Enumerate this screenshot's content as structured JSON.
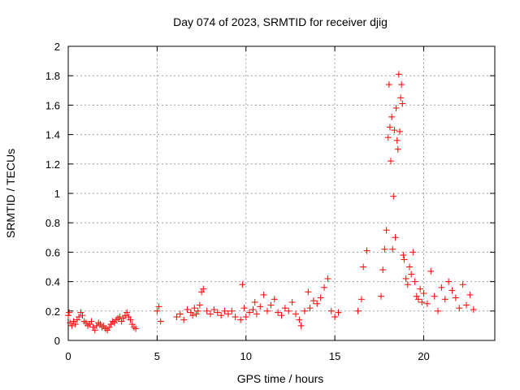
{
  "chart_data": {
    "type": "scatter",
    "title": "Day 074 of 2023, SRMTID for receiver djig",
    "xlabel": "GPS time / hours",
    "ylabel": "SRMTID / TECUs",
    "xlim": [
      0,
      24
    ],
    "ylim": [
      0,
      2
    ],
    "xticks": [
      0,
      5,
      10,
      15,
      20
    ],
    "xtick_labels": [
      "0",
      "5",
      "10",
      "15",
      "20"
    ],
    "yticks": [
      0,
      0.2,
      0.4,
      0.6,
      0.8,
      1,
      1.2,
      1.4,
      1.6,
      1.8,
      2
    ],
    "ytick_labels": [
      "0",
      "0.2",
      "0.4",
      "0.6",
      "0.8",
      "1",
      "1.2",
      "1.4",
      "1.6",
      "1.8",
      "2"
    ],
    "grid": true,
    "marker": "+",
    "color": "#ff0000",
    "series": [
      {
        "name": "SRMTID",
        "x": [
          0.0,
          0.05,
          0.1,
          0.2,
          0.3,
          0.4,
          0.5,
          0.6,
          0.7,
          0.8,
          0.9,
          1.0,
          1.1,
          1.2,
          1.3,
          1.4,
          1.5,
          1.6,
          1.7,
          1.8,
          1.9,
          2.0,
          2.1,
          2.2,
          2.3,
          2.4,
          2.5,
          2.6,
          2.7,
          2.8,
          2.9,
          3.0,
          3.1,
          3.2,
          3.3,
          3.4,
          3.5,
          3.6,
          3.7,
          3.8,
          5.0,
          5.1,
          5.2,
          6.1,
          6.3,
          6.5,
          6.7,
          6.9,
          7.0,
          7.1,
          7.2,
          7.3,
          7.4,
          7.5,
          7.6,
          7.8,
          8.0,
          8.2,
          8.4,
          8.6,
          8.8,
          9.0,
          9.2,
          9.4,
          9.7,
          9.8,
          9.9,
          10.0,
          10.2,
          10.4,
          10.5,
          10.6,
          10.8,
          11.0,
          11.2,
          11.4,
          11.6,
          11.8,
          12.0,
          12.2,
          12.4,
          12.6,
          12.8,
          13.0,
          13.1,
          13.3,
          13.5,
          13.6,
          13.8,
          14.0,
          14.2,
          14.4,
          14.6,
          14.8,
          15.0,
          15.2,
          16.3,
          16.5,
          16.6,
          16.8,
          17.6,
          17.7,
          17.8,
          17.9,
          18.0,
          18.05,
          18.1,
          18.15,
          18.2,
          18.25,
          18.3,
          18.35,
          18.4,
          18.45,
          18.5,
          18.55,
          18.6,
          18.65,
          18.7,
          18.75,
          18.8,
          18.85,
          18.9,
          19.0,
          19.1,
          19.2,
          19.3,
          19.4,
          19.5,
          19.6,
          19.7,
          19.8,
          19.9,
          20.0,
          20.2,
          20.4,
          20.6,
          20.8,
          21.0,
          21.2,
          21.4,
          21.6,
          21.8,
          22.0,
          22.2,
          22.4,
          22.6,
          22.8
        ],
        "y": [
          0.17,
          0.19,
          0.12,
          0.1,
          0.13,
          0.11,
          0.14,
          0.16,
          0.19,
          0.17,
          0.13,
          0.12,
          0.1,
          0.11,
          0.13,
          0.09,
          0.07,
          0.1,
          0.12,
          0.11,
          0.09,
          0.1,
          0.08,
          0.07,
          0.09,
          0.11,
          0.13,
          0.12,
          0.14,
          0.15,
          0.16,
          0.13,
          0.15,
          0.17,
          0.19,
          0.16,
          0.14,
          0.11,
          0.09,
          0.08,
          0.2,
          0.23,
          0.13,
          0.16,
          0.18,
          0.14,
          0.21,
          0.19,
          0.17,
          0.22,
          0.18,
          0.2,
          0.24,
          0.33,
          0.35,
          0.2,
          0.18,
          0.21,
          0.19,
          0.17,
          0.2,
          0.18,
          0.2,
          0.16,
          0.14,
          0.38,
          0.22,
          0.16,
          0.19,
          0.21,
          0.26,
          0.18,
          0.23,
          0.31,
          0.2,
          0.24,
          0.28,
          0.19,
          0.17,
          0.22,
          0.2,
          0.26,
          0.18,
          0.14,
          0.1,
          0.2,
          0.33,
          0.22,
          0.27,
          0.25,
          0.29,
          0.36,
          0.42,
          0.2,
          0.16,
          0.19,
          0.2,
          0.28,
          0.5,
          0.61,
          0.3,
          0.48,
          0.62,
          0.75,
          1.38,
          1.74,
          1.45,
          1.22,
          1.52,
          0.62,
          0.98,
          1.43,
          0.7,
          1.58,
          1.36,
          1.3,
          1.81,
          1.42,
          1.65,
          1.74,
          1.61,
          0.58,
          0.55,
          0.42,
          0.38,
          0.5,
          0.45,
          0.6,
          0.4,
          0.3,
          0.28,
          0.35,
          0.26,
          0.32,
          0.25,
          0.47,
          0.3,
          0.2,
          0.36,
          0.28,
          0.4,
          0.34,
          0.29,
          0.22,
          0.38,
          0.24,
          0.31,
          0.21
        ]
      }
    ]
  }
}
